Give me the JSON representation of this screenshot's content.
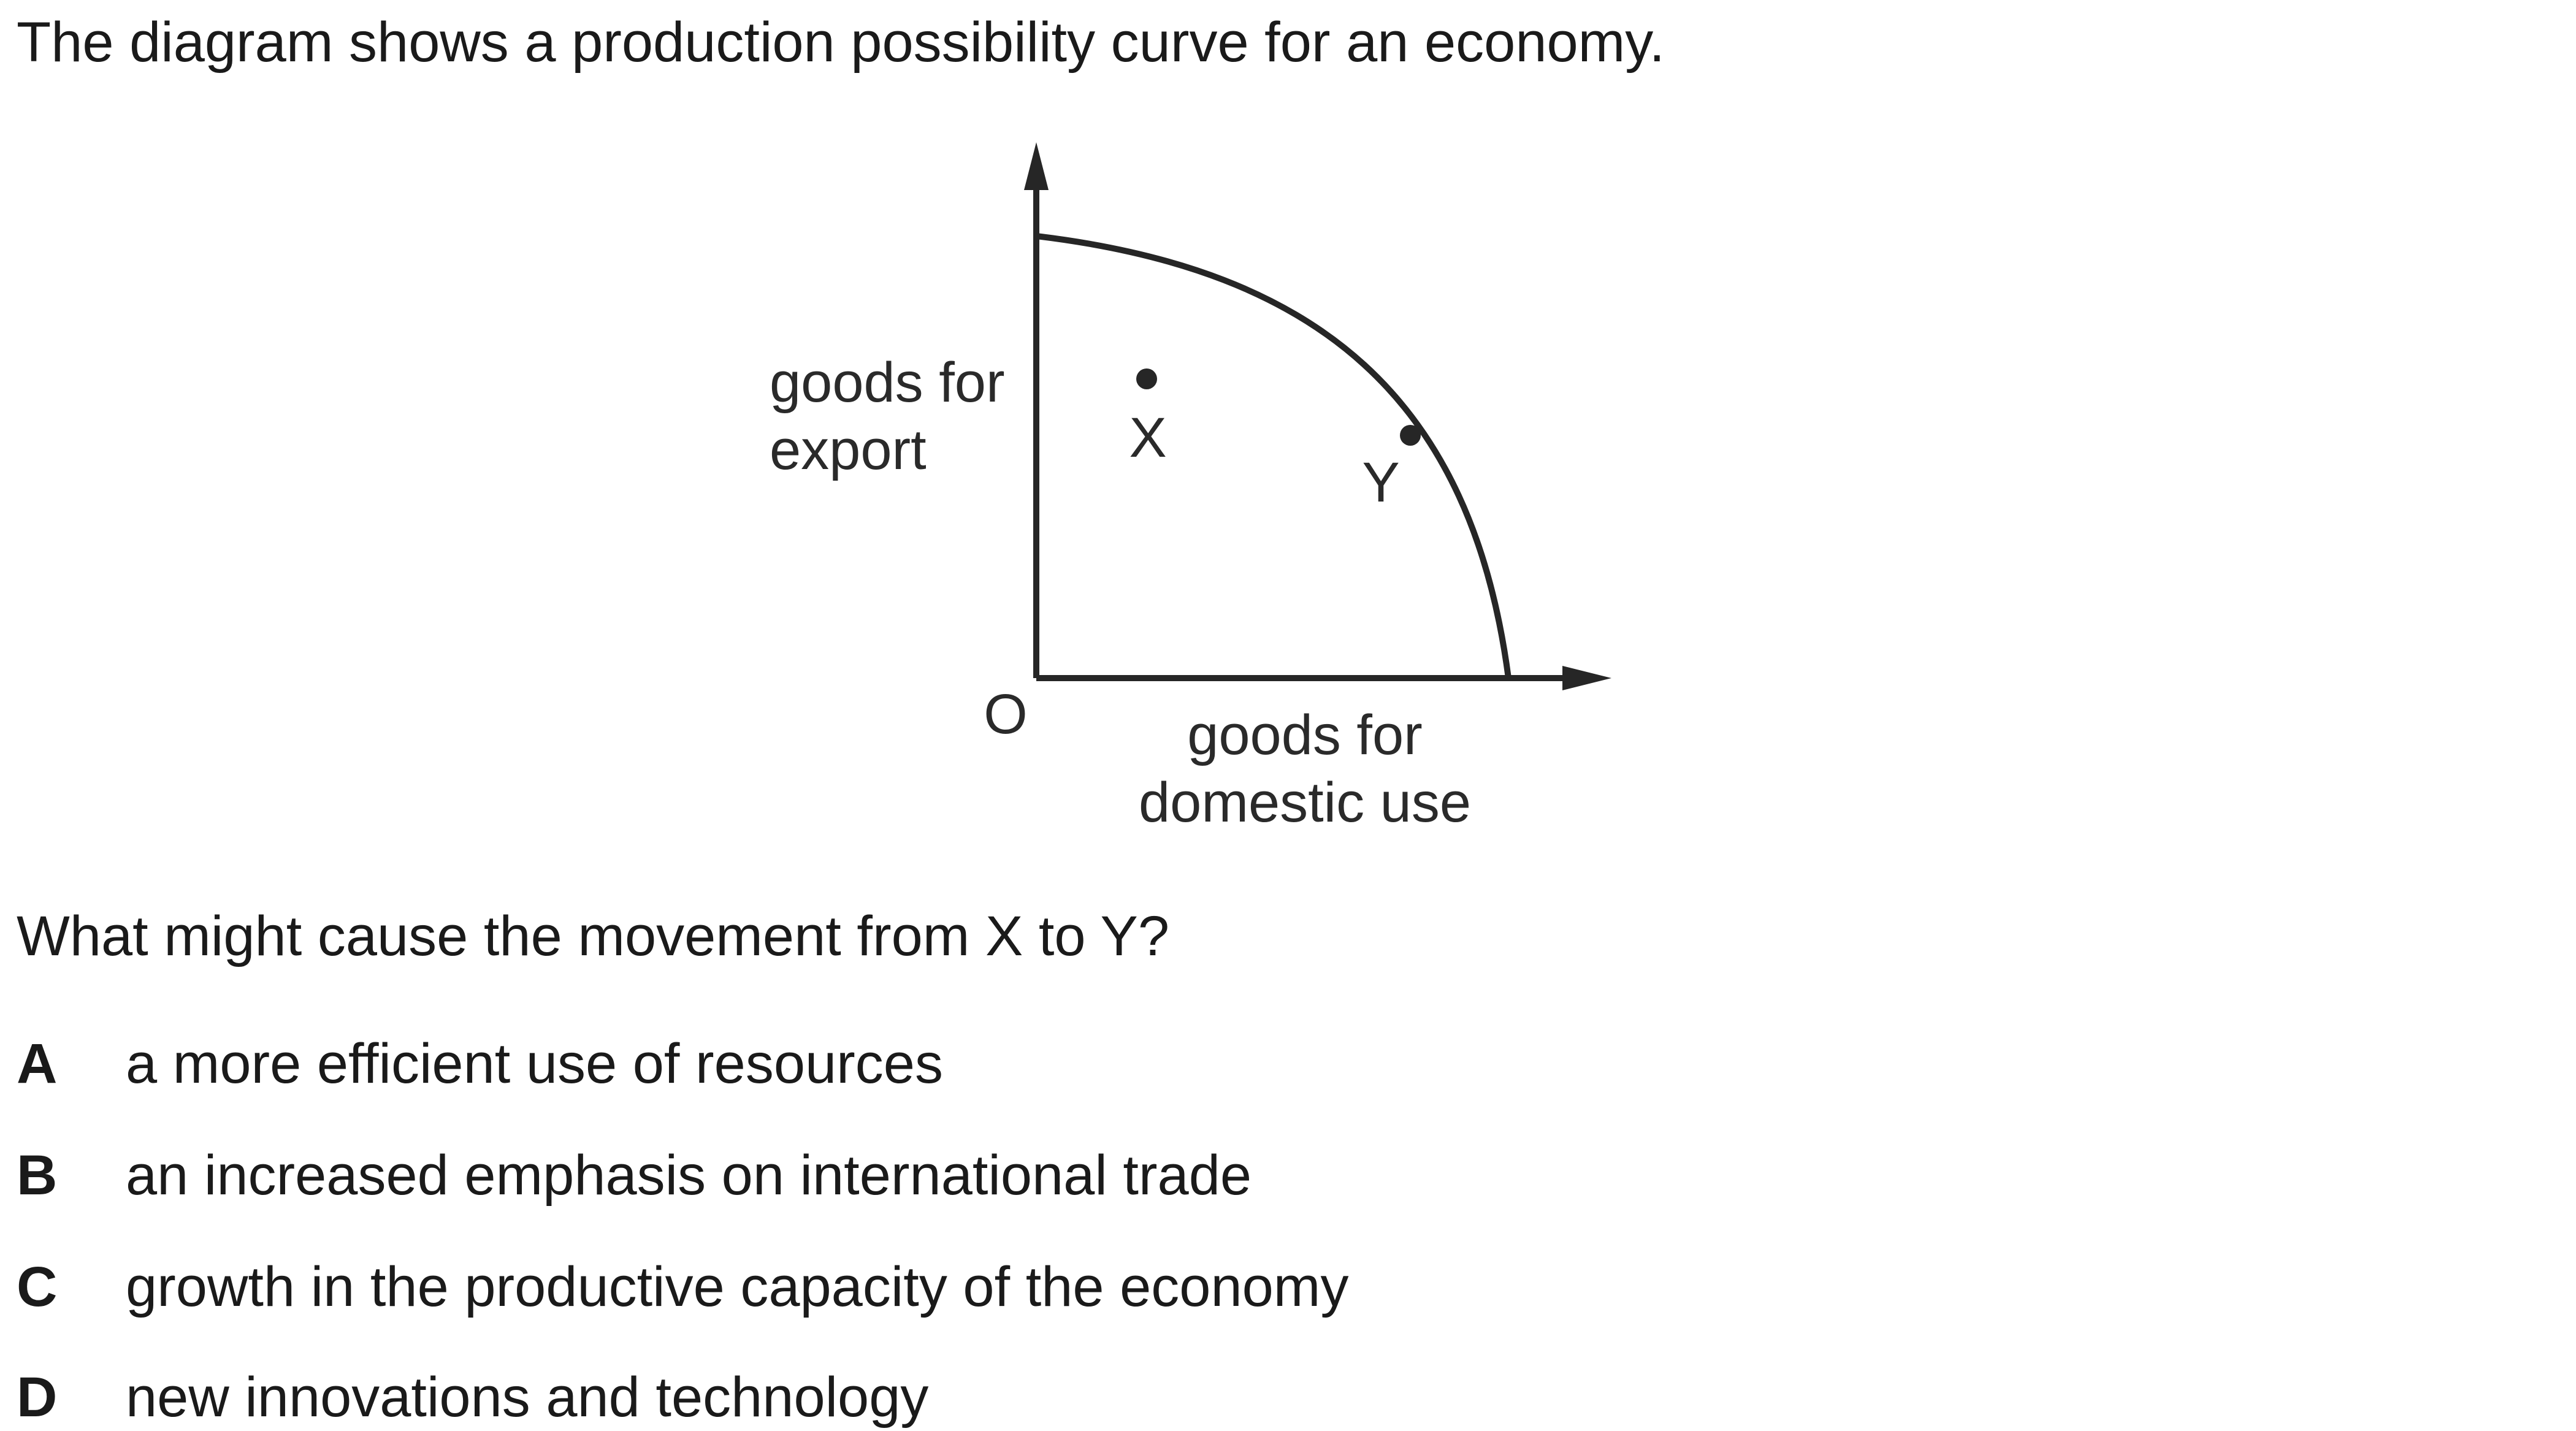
{
  "intro": "The diagram shows a production possibility curve for an economy.",
  "diagram": {
    "y_axis_label_line1": "goods for",
    "y_axis_label_line2": "export",
    "x_axis_label_line1": "goods for",
    "x_axis_label_line2": "domestic use",
    "origin_label": "O",
    "point_x_label": "X",
    "point_y_label": "Y",
    "line_color": "#262626"
  },
  "question": "What might cause the movement from X to Y?",
  "options": [
    {
      "letter": "A",
      "text": "a more efficient use of resources"
    },
    {
      "letter": "B",
      "text": "an increased emphasis on international trade"
    },
    {
      "letter": "C",
      "text": "growth in the productive capacity of the economy"
    },
    {
      "letter": "D",
      "text": "new innovations and technology"
    }
  ]
}
